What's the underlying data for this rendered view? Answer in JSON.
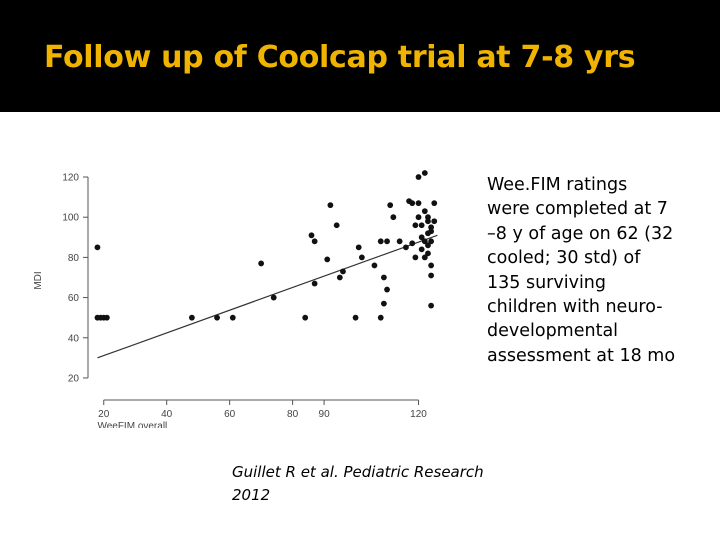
{
  "slide": {
    "title": "Follow up of Coolcap trial at 7-8 yrs",
    "body_text": "Wee.FIM ratings\nwere completed at 7\n–8 y of age on 62 (32\ncooled; 30 std)  of\n135 surviving\nchildren with neuro-\ndevelopmental\nassessment at 18 mo",
    "citation": "Guillet R et al. Pediatric Research\n2012"
  },
  "colors": {
    "title": "#f0b400",
    "header_background": "#000000",
    "content_background": "#ffffff",
    "points": "#111111",
    "axis": "#555555"
  },
  "chart_data": {
    "type": "scatter",
    "xlabel": "WeeFIM overall",
    "ylabel": "MDI",
    "xlim": [
      15,
      130
    ],
    "ylim": [
      15,
      122
    ],
    "xticks": [
      20,
      40,
      60,
      80,
      90,
      120
    ],
    "yticks": [
      20,
      40,
      60,
      80,
      100,
      120
    ],
    "grid": false,
    "trend_line": {
      "x": [
        18,
        126
      ],
      "y": [
        30,
        91
      ]
    },
    "points": [
      [
        18,
        85
      ],
      [
        18,
        50
      ],
      [
        19,
        50
      ],
      [
        20,
        50
      ],
      [
        21,
        50
      ],
      [
        48,
        50
      ],
      [
        56,
        50
      ],
      [
        61,
        50
      ],
      [
        70,
        77
      ],
      [
        74,
        60
      ],
      [
        84,
        50
      ],
      [
        86,
        91
      ],
      [
        87,
        88
      ],
      [
        87,
        67
      ],
      [
        91,
        79
      ],
      [
        92,
        106
      ],
      [
        94,
        96
      ],
      [
        95,
        70
      ],
      [
        96,
        73
      ],
      [
        100,
        50
      ],
      [
        101,
        85
      ],
      [
        102,
        80
      ],
      [
        106,
        76
      ],
      [
        108,
        88
      ],
      [
        108,
        50
      ],
      [
        109,
        70
      ],
      [
        109,
        57
      ],
      [
        110,
        64
      ],
      [
        110,
        88
      ],
      [
        111,
        106
      ],
      [
        112,
        100
      ],
      [
        114,
        88
      ],
      [
        116,
        85
      ],
      [
        117,
        108
      ],
      [
        118,
        107
      ],
      [
        118,
        87
      ],
      [
        119,
        80
      ],
      [
        119,
        96
      ],
      [
        120,
        100
      ],
      [
        120,
        107
      ],
      [
        120,
        120
      ],
      [
        121,
        84
      ],
      [
        121,
        96
      ],
      [
        121,
        90
      ],
      [
        122,
        122
      ],
      [
        122,
        103
      ],
      [
        122,
        88
      ],
      [
        122,
        80
      ],
      [
        123,
        100
      ],
      [
        123,
        98
      ],
      [
        123,
        92
      ],
      [
        123,
        86
      ],
      [
        123,
        82
      ],
      [
        124,
        95
      ],
      [
        124,
        93
      ],
      [
        124,
        88
      ],
      [
        124,
        76
      ],
      [
        124,
        71
      ],
      [
        124,
        56
      ],
      [
        125,
        98
      ],
      [
        125,
        107
      ]
    ]
  }
}
